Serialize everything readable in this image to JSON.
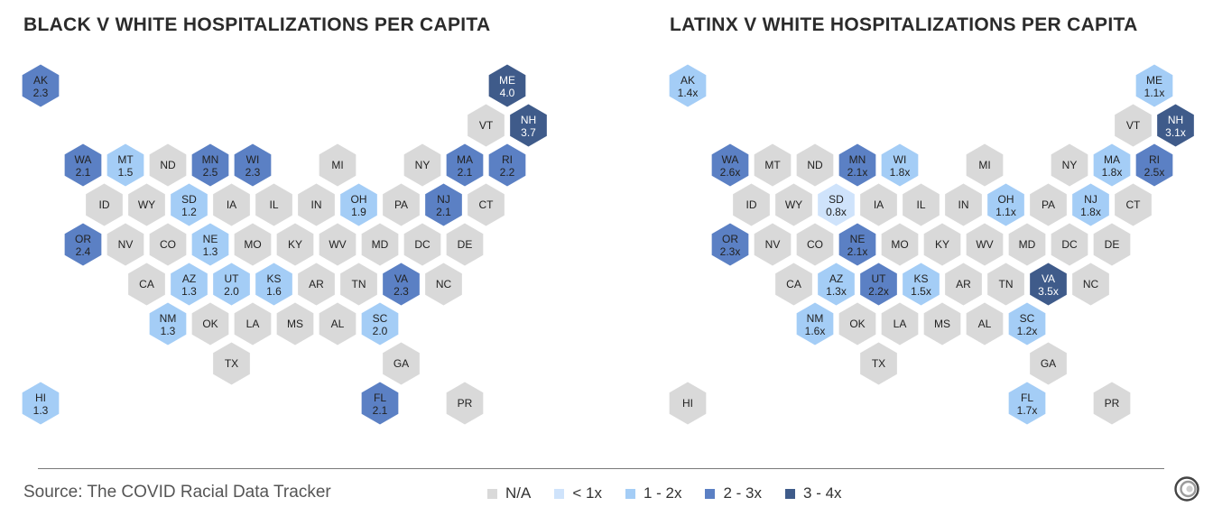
{
  "colors": {
    "na": "#d9d9d9",
    "lt1": "#cfe3fb",
    "r1to2": "#a4cdf6",
    "r2to3": "#5b80c4",
    "r3to4": "#3f5b8a"
  },
  "maps": [
    {
      "title": "BLACK V WHITE HOSPITALIZATIONS PER CAPITA",
      "states": [
        {
          "code": "AK",
          "value": "2.3",
          "bin": "r2to3"
        },
        {
          "code": "ME",
          "value": "4.0",
          "bin": "r3to4"
        },
        {
          "code": "VT",
          "value": "",
          "bin": "na"
        },
        {
          "code": "NH",
          "value": "3.7",
          "bin": "r3to4"
        },
        {
          "code": "WA",
          "value": "2.1",
          "bin": "r2to3"
        },
        {
          "code": "MT",
          "value": "1.5",
          "bin": "r1to2"
        },
        {
          "code": "ND",
          "value": "",
          "bin": "na"
        },
        {
          "code": "MN",
          "value": "2.5",
          "bin": "r2to3"
        },
        {
          "code": "WI",
          "value": "2.3",
          "bin": "r2to3"
        },
        {
          "code": "MI",
          "value": "",
          "bin": "na"
        },
        {
          "code": "NY",
          "value": "",
          "bin": "na"
        },
        {
          "code": "MA",
          "value": "2.1",
          "bin": "r2to3"
        },
        {
          "code": "RI",
          "value": "2.2",
          "bin": "r2to3"
        },
        {
          "code": "ID",
          "value": "",
          "bin": "na"
        },
        {
          "code": "WY",
          "value": "",
          "bin": "na"
        },
        {
          "code": "SD",
          "value": "1.2",
          "bin": "r1to2"
        },
        {
          "code": "IA",
          "value": "",
          "bin": "na"
        },
        {
          "code": "IL",
          "value": "",
          "bin": "na"
        },
        {
          "code": "IN",
          "value": "",
          "bin": "na"
        },
        {
          "code": "OH",
          "value": "1.9",
          "bin": "r1to2"
        },
        {
          "code": "PA",
          "value": "",
          "bin": "na"
        },
        {
          "code": "NJ",
          "value": "2.1",
          "bin": "r2to3"
        },
        {
          "code": "CT",
          "value": "",
          "bin": "na"
        },
        {
          "code": "OR",
          "value": "2.4",
          "bin": "r2to3"
        },
        {
          "code": "NV",
          "value": "",
          "bin": "na"
        },
        {
          "code": "CO",
          "value": "",
          "bin": "na"
        },
        {
          "code": "NE",
          "value": "1.3",
          "bin": "r1to2"
        },
        {
          "code": "MO",
          "value": "",
          "bin": "na"
        },
        {
          "code": "KY",
          "value": "",
          "bin": "na"
        },
        {
          "code": "WV",
          "value": "",
          "bin": "na"
        },
        {
          "code": "MD",
          "value": "",
          "bin": "na"
        },
        {
          "code": "DC",
          "value": "",
          "bin": "na"
        },
        {
          "code": "DE",
          "value": "",
          "bin": "na"
        },
        {
          "code": "CA",
          "value": "",
          "bin": "na"
        },
        {
          "code": "AZ",
          "value": "1.3",
          "bin": "r1to2"
        },
        {
          "code": "UT",
          "value": "2.0",
          "bin": "r1to2"
        },
        {
          "code": "KS",
          "value": "1.6",
          "bin": "r1to2"
        },
        {
          "code": "AR",
          "value": "",
          "bin": "na"
        },
        {
          "code": "TN",
          "value": "",
          "bin": "na"
        },
        {
          "code": "VA",
          "value": "2.3",
          "bin": "r2to3"
        },
        {
          "code": "NC",
          "value": "",
          "bin": "na"
        },
        {
          "code": "NM",
          "value": "1.3",
          "bin": "r1to2"
        },
        {
          "code": "OK",
          "value": "",
          "bin": "na"
        },
        {
          "code": "LA",
          "value": "",
          "bin": "na"
        },
        {
          "code": "MS",
          "value": "",
          "bin": "na"
        },
        {
          "code": "AL",
          "value": "",
          "bin": "na"
        },
        {
          "code": "SC",
          "value": "2.0",
          "bin": "r1to2"
        },
        {
          "code": "TX",
          "value": "",
          "bin": "na"
        },
        {
          "code": "GA",
          "value": "",
          "bin": "na"
        },
        {
          "code": "HI",
          "value": "1.3",
          "bin": "r1to2"
        },
        {
          "code": "FL",
          "value": "2.1",
          "bin": "r2to3"
        },
        {
          "code": "PR",
          "value": "",
          "bin": "na"
        }
      ]
    },
    {
      "title": "LATINX V WHITE HOSPITALIZATIONS PER CAPITA",
      "states": [
        {
          "code": "AK",
          "value": "1.4x",
          "bin": "r1to2"
        },
        {
          "code": "ME",
          "value": "1.1x",
          "bin": "r1to2"
        },
        {
          "code": "VT",
          "value": "",
          "bin": "na"
        },
        {
          "code": "NH",
          "value": "3.1x",
          "bin": "r3to4"
        },
        {
          "code": "WA",
          "value": "2.6x",
          "bin": "r2to3"
        },
        {
          "code": "MT",
          "value": "",
          "bin": "na"
        },
        {
          "code": "ND",
          "value": "",
          "bin": "na"
        },
        {
          "code": "MN",
          "value": "2.1x",
          "bin": "r2to3"
        },
        {
          "code": "WI",
          "value": "1.8x",
          "bin": "r1to2"
        },
        {
          "code": "MI",
          "value": "",
          "bin": "na"
        },
        {
          "code": "NY",
          "value": "",
          "bin": "na"
        },
        {
          "code": "MA",
          "value": "1.8x",
          "bin": "r1to2"
        },
        {
          "code": "RI",
          "value": "2.5x",
          "bin": "r2to3"
        },
        {
          "code": "ID",
          "value": "",
          "bin": "na"
        },
        {
          "code": "WY",
          "value": "",
          "bin": "na"
        },
        {
          "code": "SD",
          "value": "0.8x",
          "bin": "lt1"
        },
        {
          "code": "IA",
          "value": "",
          "bin": "na"
        },
        {
          "code": "IL",
          "value": "",
          "bin": "na"
        },
        {
          "code": "IN",
          "value": "",
          "bin": "na"
        },
        {
          "code": "OH",
          "value": "1.1x",
          "bin": "r1to2"
        },
        {
          "code": "PA",
          "value": "",
          "bin": "na"
        },
        {
          "code": "NJ",
          "value": "1.8x",
          "bin": "r1to2"
        },
        {
          "code": "CT",
          "value": "",
          "bin": "na"
        },
        {
          "code": "OR",
          "value": "2.3x",
          "bin": "r2to3"
        },
        {
          "code": "NV",
          "value": "",
          "bin": "na"
        },
        {
          "code": "CO",
          "value": "",
          "bin": "na"
        },
        {
          "code": "NE",
          "value": "2.1x",
          "bin": "r2to3"
        },
        {
          "code": "MO",
          "value": "",
          "bin": "na"
        },
        {
          "code": "KY",
          "value": "",
          "bin": "na"
        },
        {
          "code": "WV",
          "value": "",
          "bin": "na"
        },
        {
          "code": "MD",
          "value": "",
          "bin": "na"
        },
        {
          "code": "DC",
          "value": "",
          "bin": "na"
        },
        {
          "code": "DE",
          "value": "",
          "bin": "na"
        },
        {
          "code": "CA",
          "value": "",
          "bin": "na"
        },
        {
          "code": "AZ",
          "value": "1.3x",
          "bin": "r1to2"
        },
        {
          "code": "UT",
          "value": "2.2x",
          "bin": "r2to3"
        },
        {
          "code": "KS",
          "value": "1.5x",
          "bin": "r1to2"
        },
        {
          "code": "AR",
          "value": "",
          "bin": "na"
        },
        {
          "code": "TN",
          "value": "",
          "bin": "na"
        },
        {
          "code": "VA",
          "value": "3.5x",
          "bin": "r3to4"
        },
        {
          "code": "NC",
          "value": "",
          "bin": "na"
        },
        {
          "code": "NM",
          "value": "1.6x",
          "bin": "r1to2"
        },
        {
          "code": "OK",
          "value": "",
          "bin": "na"
        },
        {
          "code": "LA",
          "value": "",
          "bin": "na"
        },
        {
          "code": "MS",
          "value": "",
          "bin": "na"
        },
        {
          "code": "AL",
          "value": "",
          "bin": "na"
        },
        {
          "code": "SC",
          "value": "1.2x",
          "bin": "r1to2"
        },
        {
          "code": "TX",
          "value": "",
          "bin": "na"
        },
        {
          "code": "GA",
          "value": "",
          "bin": "na"
        },
        {
          "code": "HI",
          "value": "",
          "bin": "na"
        },
        {
          "code": "FL",
          "value": "1.7x",
          "bin": "r1to2"
        },
        {
          "code": "PR",
          "value": "",
          "bin": "na"
        }
      ]
    }
  ],
  "footer": {
    "source": "Source: The COVID Racial Data Tracker"
  },
  "legend": [
    {
      "label": "N/A",
      "bin": "na"
    },
    {
      "label": "< 1x",
      "bin": "lt1"
    },
    {
      "label": "1 - 2x",
      "bin": "r1to2"
    },
    {
      "label": "2 - 3x",
      "bin": "r2to3"
    },
    {
      "label": "3 - 4x",
      "bin": "r3to4"
    }
  ]
}
